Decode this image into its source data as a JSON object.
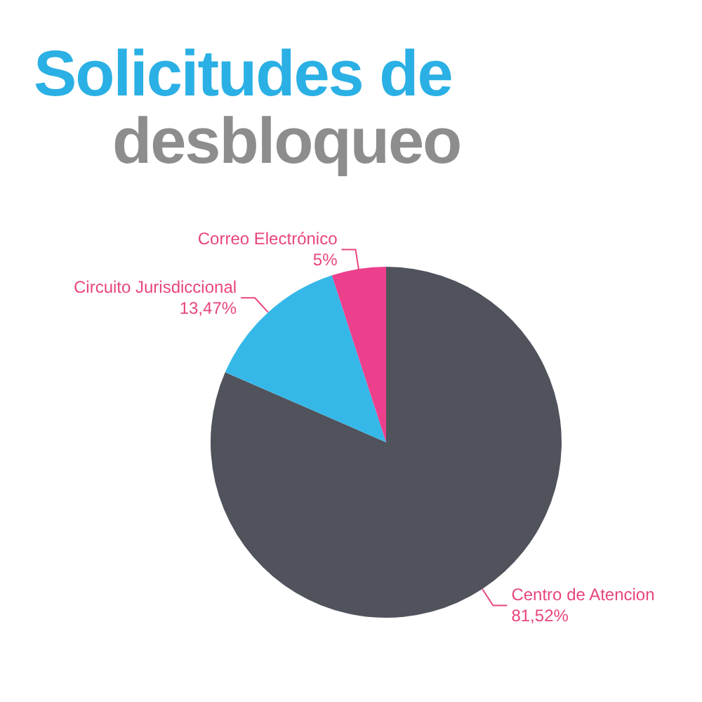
{
  "chart_data": {
    "type": "pie",
    "title": "Solicitudes de",
    "subtitle": "desbloqueo",
    "categories": [
      "Centro de Atencion",
      "Circuito Jurisdiccional",
      "Correo Electrónico"
    ],
    "values": [
      81.52,
      13.47,
      5
    ],
    "value_labels": [
      "81,52%",
      "13,47%",
      "5%"
    ],
    "colors": [
      "#50535c",
      "#35b8e8",
      "#ec3f8c"
    ],
    "legend": false
  }
}
